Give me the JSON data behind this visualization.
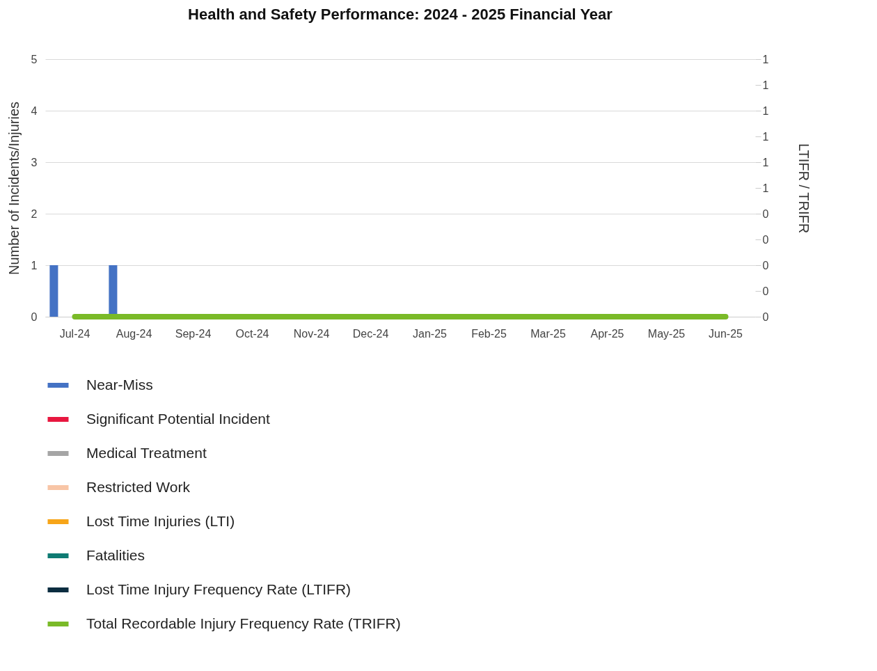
{
  "chart_data": {
    "type": "bar",
    "title": "Health and Safety Performance: 2024 - 2025 Financial Year",
    "ylabel": "Number of Incidents/Injuries",
    "y2label": "LTIFR / TRIFR",
    "categories": [
      "Jul-24",
      "Aug-24",
      "Sep-24",
      "Oct-24",
      "Nov-24",
      "Dec-24",
      "Jan-25",
      "Feb-25",
      "Mar-25",
      "Apr-25",
      "May-25",
      "Jun-25"
    ],
    "series": [
      {
        "name": "Near-Miss",
        "color": "#4472c4",
        "values": [
          1,
          1,
          0,
          0,
          0,
          0,
          0,
          0,
          0,
          0,
          0,
          0
        ]
      },
      {
        "name": "Significant Potential Incident",
        "color": "#e8173f",
        "values": [
          0,
          0,
          0,
          0,
          0,
          0,
          0,
          0,
          0,
          0,
          0,
          0
        ]
      },
      {
        "name": "Medical Treatment",
        "color": "#a5a5a5",
        "values": [
          0,
          0,
          0,
          0,
          0,
          0,
          0,
          0,
          0,
          0,
          0,
          0
        ]
      },
      {
        "name": "Restricted Work",
        "color": "#f8c5a6",
        "values": [
          0,
          0,
          0,
          0,
          0,
          0,
          0,
          0,
          0,
          0,
          0,
          0
        ]
      },
      {
        "name": "Lost Time Injuries (LTI)",
        "color": "#f7a519",
        "values": [
          0,
          0,
          0,
          0,
          0,
          0,
          0,
          0,
          0,
          0,
          0,
          0
        ]
      },
      {
        "name": "Fatalities",
        "color": "#0f7b73",
        "values": [
          0,
          0,
          0,
          0,
          0,
          0,
          0,
          0,
          0,
          0,
          0,
          0
        ]
      },
      {
        "name": "Lost Time Injury Frequency Rate (LTIFR)",
        "color": "#0b2d40",
        "type": "line",
        "axis": "y2",
        "values": [
          null,
          null,
          null,
          null,
          null,
          null,
          null,
          null,
          null,
          null,
          null,
          null
        ]
      },
      {
        "name": "Total Recordable Injury Frequency Rate (TRIFR)",
        "color": "#7aba28",
        "type": "line",
        "axis": "y2",
        "values": [
          0,
          0,
          0,
          0,
          0,
          0,
          0,
          0,
          0,
          0,
          0,
          0
        ]
      }
    ],
    "ylim": [
      0,
      5
    ],
    "yticks": [
      0,
      1,
      2,
      3,
      4,
      5
    ],
    "y2lim": [
      0,
      1
    ],
    "y2ticks": [
      {
        "value": 0,
        "label": "0"
      },
      {
        "value": 0.1,
        "label": "0"
      },
      {
        "value": 0.2,
        "label": "0"
      },
      {
        "value": 0.3,
        "label": "0"
      },
      {
        "value": 0.4,
        "label": "0"
      },
      {
        "value": 0.5,
        "label": "1"
      },
      {
        "value": 0.6,
        "label": "1"
      },
      {
        "value": 0.7,
        "label": "1"
      },
      {
        "value": 0.8,
        "label": "1"
      },
      {
        "value": 0.9,
        "label": "1"
      },
      {
        "value": 1,
        "label": "1"
      }
    ],
    "grid": "y",
    "legend": "bottom"
  }
}
